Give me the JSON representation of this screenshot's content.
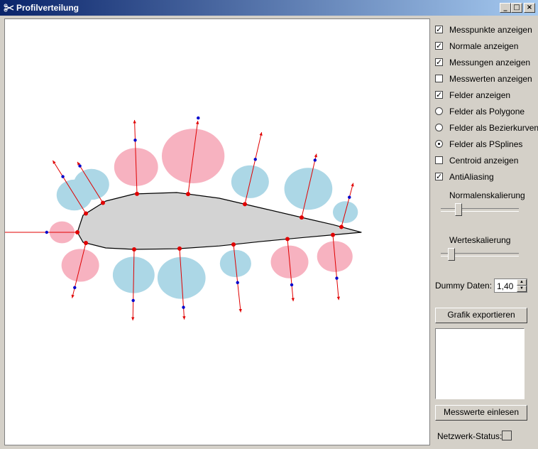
{
  "window": {
    "title": "Profilverteilung",
    "icon": "scissors-icon",
    "minimize_icon": "minimize-icon",
    "maximize_icon": "maximize-icon",
    "close_icon": "close-icon",
    "minimize_glyph": "_",
    "maximize_glyph": "□",
    "close_glyph": "×"
  },
  "options": [
    {
      "type": "checkbox",
      "label": "Messpunkte anzeigen",
      "checked": true
    },
    {
      "type": "checkbox",
      "label": "Normale anzeigen",
      "checked": true
    },
    {
      "type": "checkbox",
      "label": "Messungen anzeigen",
      "checked": true
    },
    {
      "type": "checkbox",
      "label": "Messwerten anzeigen",
      "checked": false
    },
    {
      "type": "checkbox",
      "label": "Felder anzeigen",
      "checked": true
    },
    {
      "type": "radio",
      "label": "Felder als Polygone",
      "checked": false
    },
    {
      "type": "radio",
      "label": "Felder als Bezierkurven",
      "checked": false
    },
    {
      "type": "radio",
      "label": "Felder als PSplines",
      "checked": true
    },
    {
      "type": "checkbox",
      "label": "Centroid anzeigen",
      "checked": false
    },
    {
      "type": "checkbox",
      "label": "AntiAliasing",
      "checked": true
    }
  ],
  "normal_scale": {
    "label": "Normalenskalierung",
    "value": 0.2
  },
  "value_scale": {
    "label": "Werteskalierung",
    "value": 0.1
  },
  "dummy": {
    "label": "Dummy Daten:",
    "value": "1,40"
  },
  "buttons": {
    "export": "Grafik exportieren",
    "read": "Messwerte einlesen"
  },
  "status": {
    "label": "Netzwerk-Status:"
  },
  "colors": {
    "positive_field": "#f7b2c0",
    "negative_field": "#acd7e6",
    "airfoil": "#d3d3d3",
    "normal": "#e00000",
    "measure_point": "#e00000",
    "measurement": "#0000cc"
  },
  "profile": {
    "upper": [
      [
        0,
        0
      ],
      [
        0.02,
        0.06
      ],
      [
        0.1,
        0.11
      ],
      [
        0.2,
        0.135
      ],
      [
        0.35,
        0.14
      ],
      [
        0.5,
        0.12
      ],
      [
        0.65,
        0.085
      ],
      [
        0.8,
        0.05
      ],
      [
        0.9,
        0.027
      ],
      [
        1,
        0
      ]
    ],
    "lower": [
      [
        0,
        0
      ],
      [
        0.02,
        -0.035
      ],
      [
        0.1,
        -0.055
      ],
      [
        0.2,
        -0.06
      ],
      [
        0.35,
        -0.058
      ],
      [
        0.5,
        -0.048
      ],
      [
        0.65,
        -0.032
      ],
      [
        0.8,
        -0.018
      ],
      [
        0.9,
        -0.009
      ],
      [
        1,
        0
      ]
    ],
    "points": [
      {
        "side": "leading",
        "s": 0,
        "len": 0.27,
        "val": 0.12
      },
      {
        "side": "upper",
        "s": 0.03,
        "len": 0.22,
        "val": -0.17
      },
      {
        "side": "upper",
        "s": 0.09,
        "len": 0.17,
        "val": -0.17
      },
      {
        "side": "upper",
        "s": 0.21,
        "len": 0.26,
        "val": 0.21
      },
      {
        "side": "upper",
        "s": 0.39,
        "len": 0.26,
        "val": 0.3
      },
      {
        "side": "upper",
        "s": 0.59,
        "len": 0.26,
        "val": -0.18
      },
      {
        "side": "upper",
        "s": 0.79,
        "len": 0.23,
        "val": -0.23
      },
      {
        "side": "upper",
        "s": 0.93,
        "len": 0.16,
        "val": -0.12
      },
      {
        "side": "lower",
        "s": 0.03,
        "len": 0.2,
        "val": 0.18
      },
      {
        "side": "lower",
        "s": 0.2,
        "len": 0.25,
        "val": -0.2
      },
      {
        "side": "lower",
        "s": 0.36,
        "len": 0.25,
        "val": -0.23
      },
      {
        "side": "lower",
        "s": 0.55,
        "len": 0.24,
        "val": -0.15
      },
      {
        "side": "lower",
        "s": 0.74,
        "len": 0.22,
        "val": 0.18
      },
      {
        "side": "lower",
        "s": 0.9,
        "len": 0.23,
        "val": 0.17
      }
    ]
  }
}
